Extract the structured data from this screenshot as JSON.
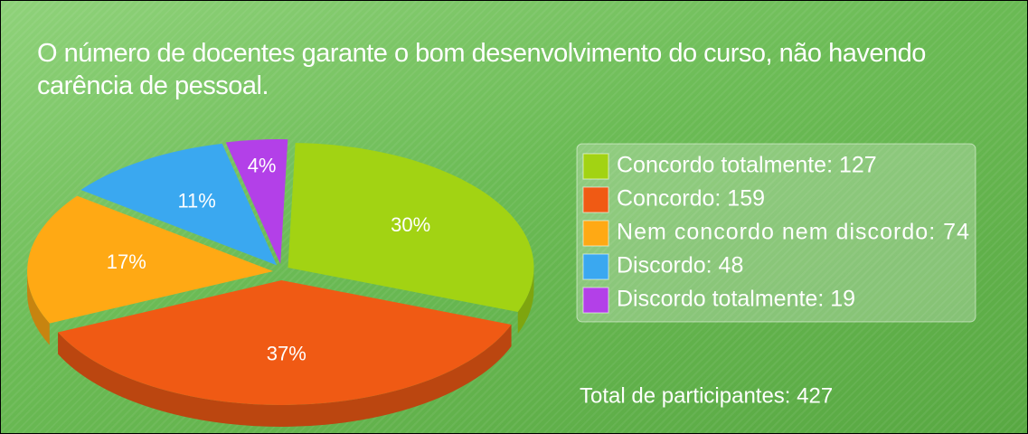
{
  "chart_data": {
    "type": "pie",
    "title": "O número de docentes garante o bom desenvolvimento do curso, não havendo carência de pessoal.",
    "categories": [
      "Concordo totalmente: 127",
      "Concordo: 159",
      "Nem concordo nem discordo: 74",
      "Discordo: 48",
      "Discordo totalmente: 19"
    ],
    "values": [
      30,
      37,
      17,
      11,
      4
    ],
    "value_labels": [
      "30%",
      "37%",
      "17%",
      "11%",
      "4%"
    ],
    "colors": [
      "#a2d313",
      "#f05a14",
      "#ffa914",
      "#3aa8f0",
      "#b340e8"
    ],
    "annotation": "Total de participantes: 427",
    "legend": "right"
  }
}
